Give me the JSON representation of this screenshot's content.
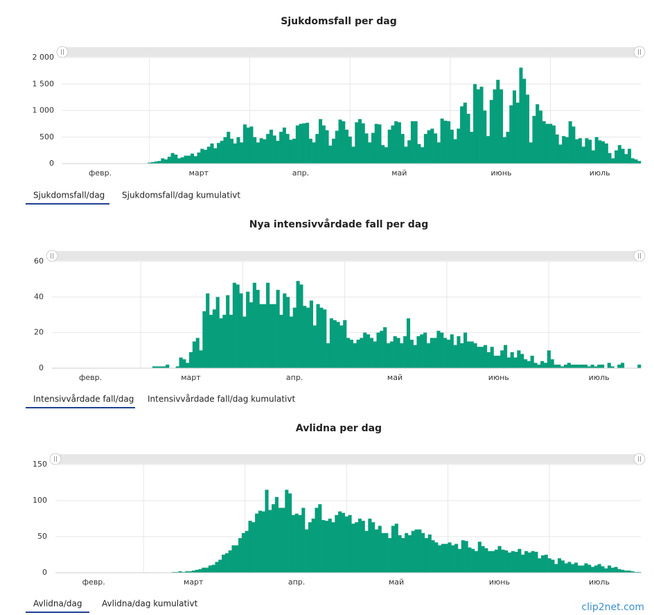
{
  "chart_data": [
    {
      "type": "bar",
      "title": "Sjukdomsfall per dag",
      "color": "#069e7b",
      "grid": true,
      "ylim": [
        0,
        2000
      ],
      "yticks": [
        0,
        500,
        {
          "value": 1000,
          "label": "1 000"
        },
        {
          "value": 1500,
          "label": "1 500"
        },
        {
          "value": 2000,
          "label": "2 000"
        }
      ],
      "categories": [
        null,
        null,
        null,
        null,
        null,
        null,
        null,
        null,
        null,
        null,
        null,
        "февр.",
        null,
        null,
        null,
        null,
        null,
        null,
        null,
        null,
        null,
        null,
        null,
        null,
        null,
        null,
        null,
        null,
        null,
        null,
        null,
        null,
        null,
        null,
        null,
        null,
        null,
        null,
        null,
        null,
        null,
        "март",
        null,
        null,
        null,
        null,
        null,
        null,
        null,
        null,
        null,
        null,
        null,
        null,
        null,
        null,
        null,
        null,
        null,
        null,
        null,
        null,
        null,
        null,
        null,
        null,
        null,
        null,
        null,
        null,
        null,
        null,
        "апр.",
        null,
        null,
        null,
        null,
        null,
        null,
        null,
        null,
        null,
        null,
        null,
        null,
        null,
        null,
        null,
        null,
        null,
        null,
        null,
        null,
        null,
        null,
        null,
        null,
        null,
        null,
        null,
        null,
        null,
        "май",
        null,
        null,
        null,
        null,
        null,
        null,
        null,
        null,
        null,
        null,
        null,
        null,
        null,
        null,
        null,
        null,
        null,
        null,
        null,
        null,
        null,
        null,
        null,
        null,
        null,
        null,
        null,
        null,
        null,
        null,
        "июнь",
        null,
        null,
        null,
        null,
        null,
        null,
        null,
        null,
        null,
        null,
        null,
        null,
        null,
        null,
        null,
        null,
        null,
        null,
        null,
        null,
        null,
        null,
        null,
        null,
        null,
        null,
        null,
        null,
        null,
        "июль",
        null,
        null,
        null,
        null,
        null,
        null,
        null,
        null,
        null,
        null,
        null,
        null
      ],
      "values": [
        1,
        0,
        0,
        0,
        0,
        0,
        0,
        0,
        0,
        0,
        0,
        0,
        0,
        0,
        0,
        0,
        0,
        0,
        0,
        0,
        0,
        2,
        5,
        3,
        1,
        7,
        20,
        30,
        40,
        50,
        100,
        80,
        130,
        200,
        170,
        100,
        120,
        150,
        150,
        190,
        140,
        210,
        280,
        260,
        320,
        380,
        290,
        390,
        430,
        500,
        600,
        470,
        380,
        500,
        400,
        740,
        680,
        700,
        500,
        400,
        480,
        460,
        560,
        640,
        530,
        430,
        600,
        680,
        560,
        450,
        470,
        720,
        750,
        760,
        770,
        470,
        400,
        560,
        840,
        720,
        630,
        340,
        470,
        620,
        830,
        800,
        640,
        510,
        320,
        780,
        840,
        760,
        570,
        400,
        580,
        750,
        740,
        350,
        310,
        640,
        720,
        800,
        780,
        560,
        320,
        440,
        800,
        800,
        370,
        310,
        560,
        630,
        660,
        570,
        400,
        850,
        810,
        800,
        640,
        460,
        660,
        1080,
        1150,
        940,
        600,
        1500,
        1400,
        1450,
        1000,
        520,
        1200,
        1400,
        1580,
        1400,
        500,
        600,
        1100,
        1380,
        1150,
        1810,
        1600,
        1300,
        400,
        900,
        1120,
        1000,
        800,
        750,
        750,
        720,
        550,
        360,
        520,
        500,
        800,
        700,
        460,
        480,
        320,
        480,
        450,
        250,
        500,
        440,
        420,
        380,
        200,
        100,
        250,
        350,
        280,
        180,
        280,
        100,
        80,
        50
      ]
    },
    {
      "type": "bar",
      "title": "Nya intensivvårdade fall per dag",
      "color": "#069e7b",
      "grid": true,
      "ylim": [
        0,
        60
      ],
      "yticks": [
        0,
        20,
        40,
        60
      ],
      "categories": [
        null,
        null,
        null,
        null,
        null,
        null,
        null,
        null,
        null,
        null,
        null,
        "февр.",
        null,
        null,
        null,
        null,
        null,
        null,
        null,
        null,
        null,
        null,
        null,
        null,
        null,
        null,
        null,
        null,
        null,
        null,
        null,
        null,
        null,
        null,
        null,
        null,
        null,
        null,
        null,
        null,
        null,
        "март",
        null,
        null,
        null,
        null,
        null,
        null,
        null,
        null,
        null,
        null,
        null,
        null,
        null,
        null,
        null,
        null,
        null,
        null,
        null,
        null,
        null,
        null,
        null,
        null,
        null,
        null,
        null,
        null,
        null,
        null,
        "апр.",
        null,
        null,
        null,
        null,
        null,
        null,
        null,
        null,
        null,
        null,
        null,
        null,
        null,
        null,
        null,
        null,
        null,
        null,
        null,
        null,
        null,
        null,
        null,
        null,
        null,
        null,
        null,
        null,
        null,
        "май",
        null,
        null,
        null,
        null,
        null,
        null,
        null,
        null,
        null,
        null,
        null,
        null,
        null,
        null,
        null,
        null,
        null,
        null,
        null,
        null,
        null,
        null,
        null,
        null,
        null,
        null,
        null,
        null,
        null,
        null,
        "июнь",
        null,
        null,
        null,
        null,
        null,
        null,
        null,
        null,
        null,
        null,
        null,
        null,
        null,
        null,
        null,
        null,
        null,
        null,
        null,
        null,
        null,
        null,
        null,
        null,
        null,
        null,
        null,
        null,
        null,
        "июль",
        null,
        null,
        null,
        null,
        null,
        null,
        null,
        null,
        null,
        null,
        null,
        null
      ],
      "values": [
        0,
        0,
        0,
        0,
        0,
        0,
        0,
        0,
        0,
        0,
        0,
        0,
        0,
        0,
        0,
        0,
        0,
        0,
        0,
        0,
        0,
        0,
        0,
        0,
        0,
        0,
        0,
        0,
        0,
        0,
        1,
        1,
        1,
        1,
        2,
        0,
        0,
        1,
        6,
        5,
        3,
        9,
        15,
        17,
        10,
        32,
        42,
        30,
        33,
        40,
        28,
        30,
        41,
        30,
        48,
        47,
        42,
        29,
        43,
        37,
        48,
        44,
        36,
        36,
        48,
        36,
        36,
        44,
        30,
        42,
        40,
        29,
        34,
        49,
        47,
        35,
        34,
        38,
        24,
        36,
        34,
        33,
        14,
        28,
        27,
        26,
        24,
        27,
        17,
        16,
        14,
        16,
        17,
        20,
        19,
        17,
        15,
        20,
        21,
        23,
        14,
        15,
        18,
        17,
        14,
        18,
        28,
        16,
        13,
        18,
        19,
        20,
        14,
        17,
        17,
        21,
        20,
        17,
        16,
        19,
        13,
        18,
        14,
        20,
        15,
        15,
        14,
        12,
        12,
        13,
        9,
        12,
        7,
        7,
        10,
        13,
        6,
        9,
        6,
        10,
        8,
        5,
        4,
        7,
        3,
        2,
        4,
        3,
        10,
        5,
        2,
        2,
        1,
        2,
        3,
        2,
        2,
        2,
        2,
        2,
        1,
        2,
        1,
        2,
        2,
        0,
        3,
        1,
        0,
        2,
        3,
        0,
        0,
        0,
        0,
        2
      ]
    },
    {
      "type": "bar",
      "title": "Avlidna per dag",
      "color": "#069e7b",
      "grid": true,
      "ylim": [
        0,
        150
      ],
      "yticks": [
        0,
        50,
        100,
        150
      ],
      "categories": [
        null,
        null,
        null,
        null,
        null,
        null,
        null,
        null,
        null,
        null,
        null,
        "февр.",
        null,
        null,
        null,
        null,
        null,
        null,
        null,
        null,
        null,
        null,
        null,
        null,
        null,
        null,
        null,
        null,
        null,
        null,
        null,
        null,
        null,
        null,
        null,
        null,
        null,
        null,
        null,
        null,
        null,
        "март",
        null,
        null,
        null,
        null,
        null,
        null,
        null,
        null,
        null,
        null,
        null,
        null,
        null,
        null,
        null,
        null,
        null,
        null,
        null,
        null,
        null,
        null,
        null,
        null,
        null,
        null,
        null,
        null,
        null,
        null,
        "апр.",
        null,
        null,
        null,
        null,
        null,
        null,
        null,
        null,
        null,
        null,
        null,
        null,
        null,
        null,
        null,
        null,
        null,
        null,
        null,
        null,
        null,
        null,
        null,
        null,
        null,
        null,
        null,
        null,
        null,
        "май",
        null,
        null,
        null,
        null,
        null,
        null,
        null,
        null,
        null,
        null,
        null,
        null,
        null,
        null,
        null,
        null,
        null,
        null,
        null,
        null,
        null,
        null,
        null,
        null,
        null,
        null,
        null,
        null,
        null,
        null,
        "июнь",
        null,
        null,
        null,
        null,
        null,
        null,
        null,
        null,
        null,
        null,
        null,
        null,
        null,
        null,
        null,
        null,
        null,
        null,
        null,
        null,
        null,
        null,
        null,
        null,
        null,
        null,
        null,
        null,
        null,
        "июль",
        null,
        null,
        null,
        null,
        null,
        null,
        null,
        null,
        null,
        null,
        null,
        null
      ],
      "values": [
        0,
        0,
        0,
        0,
        0,
        0,
        0,
        0,
        0,
        0,
        0,
        0,
        0,
        0,
        0,
        0,
        0,
        0,
        0,
        0,
        0,
        0,
        0,
        0,
        0,
        0,
        0,
        0,
        0,
        0,
        0,
        0,
        0,
        0,
        0,
        1,
        1,
        2,
        1,
        2,
        2,
        3,
        4,
        5,
        7,
        7,
        10,
        11,
        15,
        18,
        25,
        27,
        31,
        38,
        38,
        48,
        55,
        58,
        72,
        70,
        82,
        86,
        85,
        115,
        87,
        95,
        105,
        90,
        90,
        115,
        110,
        80,
        82,
        80,
        90,
        60,
        70,
        75,
        90,
        95,
        73,
        72,
        75,
        70,
        80,
        85,
        83,
        78,
        80,
        68,
        70,
        75,
        72,
        58,
        75,
        70,
        60,
        65,
        55,
        55,
        48,
        65,
        68,
        52,
        48,
        55,
        52,
        58,
        60,
        60,
        55,
        48,
        53,
        45,
        42,
        38,
        40,
        40,
        42,
        38,
        40,
        33,
        45,
        44,
        35,
        33,
        30,
        43,
        37,
        34,
        30,
        30,
        32,
        37,
        32,
        31,
        28,
        30,
        29,
        33,
        25,
        30,
        28,
        30,
        29,
        20,
        24,
        25,
        20,
        18,
        12,
        20,
        17,
        13,
        15,
        12,
        14,
        10,
        10,
        13,
        11,
        8,
        10,
        12,
        9,
        6,
        10,
        7,
        8,
        5,
        4,
        3,
        3,
        2,
        1,
        1
      ]
    }
  ],
  "tabs": [
    [
      "Sjukdomsfall/dag",
      "Sjukdomsfall/dag kumulativt"
    ],
    [
      "Intensivvårdade fall/dag",
      "Intensivvårdade fall/dag kumulativt"
    ],
    [
      "Avlidna/dag",
      "Avlidna/dag kumulativt"
    ]
  ],
  "watermark": "clip2net.com"
}
